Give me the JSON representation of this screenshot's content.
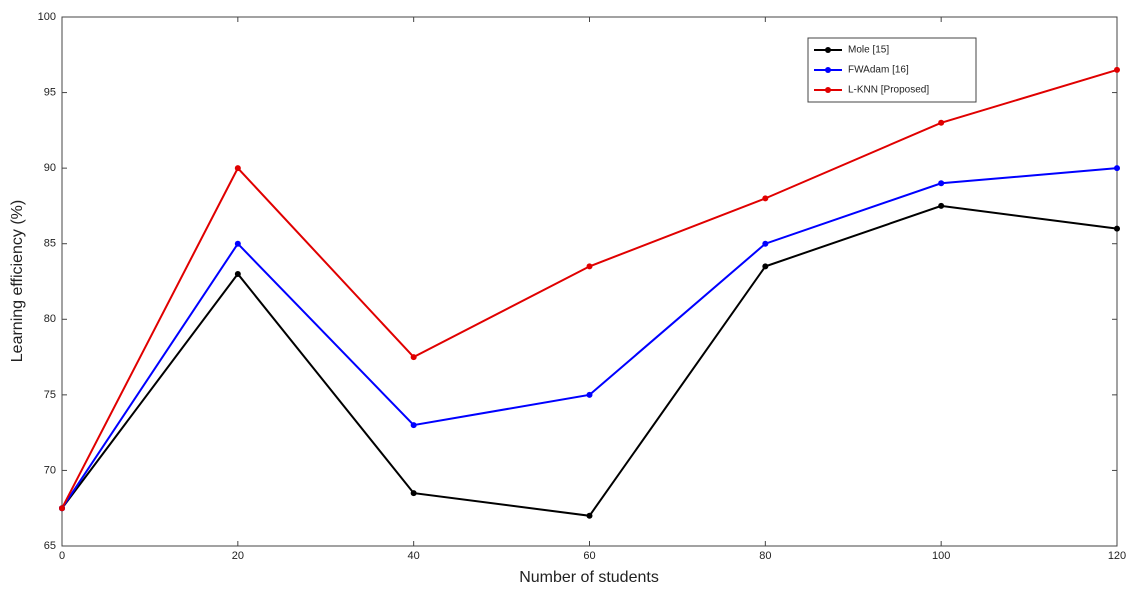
{
  "chart_data": {
    "type": "line",
    "x_label": "Number of students",
    "y_label": "Learning efficiency (%)",
    "x": [
      0,
      20,
      40,
      60,
      80,
      100,
      120
    ],
    "series": [
      {
        "name": "Mole [15]",
        "color": "#000000",
        "values": [
          67.5,
          83,
          68.5,
          67,
          83.5,
          87.5,
          86
        ]
      },
      {
        "name": "FWAdam [16]",
        "color": "#0000ff",
        "values": [
          67.5,
          85,
          73,
          75,
          85,
          89,
          90
        ]
      },
      {
        "name": "L-KNN [Proposed]",
        "color": "#e00000",
        "values": [
          67.5,
          90,
          77.5,
          83.5,
          88,
          93,
          96.5
        ]
      }
    ],
    "xlim": [
      0,
      120
    ],
    "xticks": [
      0,
      20,
      40,
      60,
      80,
      100,
      120
    ],
    "ylim": [
      65,
      100
    ],
    "yticks": [
      65,
      70,
      75,
      80,
      85,
      90,
      95,
      100
    ],
    "legend": "upper-right"
  }
}
